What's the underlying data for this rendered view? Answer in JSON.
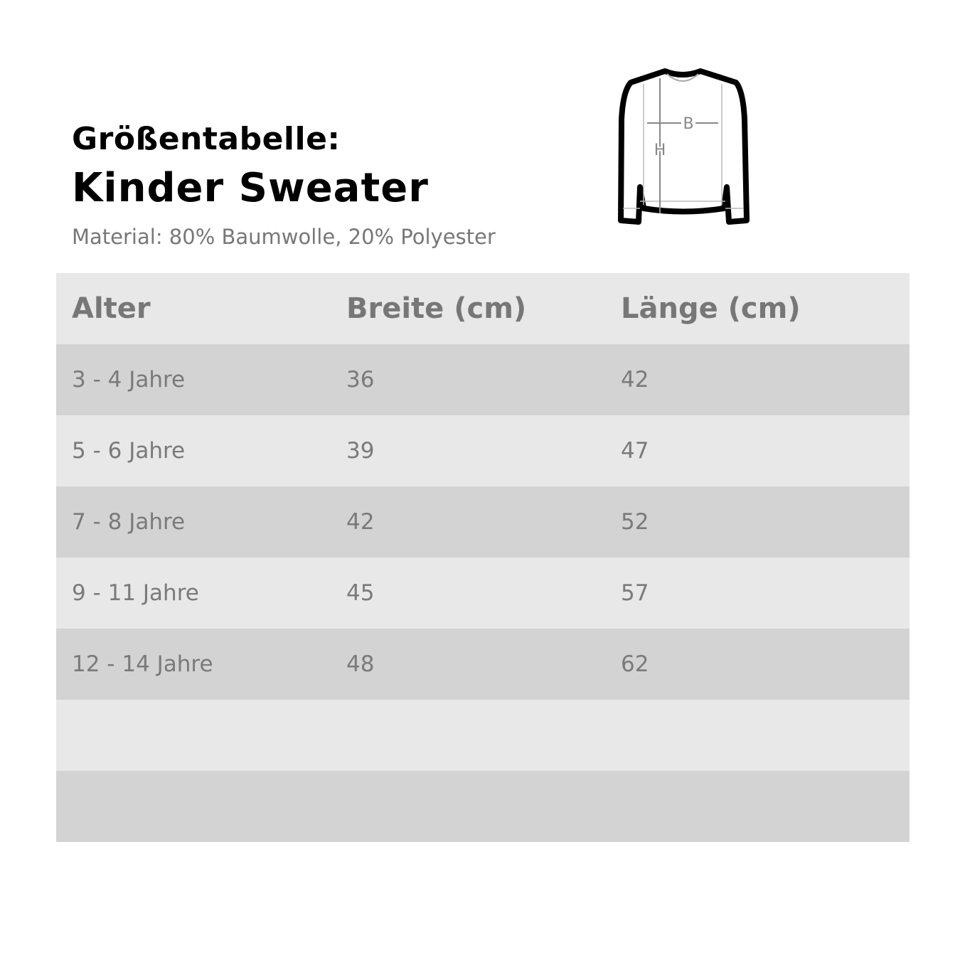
{
  "title_line1": "Größentabelle:",
  "title_line2": "Kinder Sweater",
  "material": "Material: 80% Baumwolle, 20% Polyester",
  "diagram": {
    "width_label": "B",
    "height_label": "H"
  },
  "table": {
    "headers": [
      "Alter",
      "Breite (cm)",
      "Länge (cm)"
    ],
    "rows": [
      [
        "3 - 4 Jahre",
        "36",
        "42"
      ],
      [
        "5 - 6 Jahre",
        "39",
        "47"
      ],
      [
        "7 - 8 Jahre",
        "42",
        "52"
      ],
      [
        "9 - 11 Jahre",
        "45",
        "57"
      ],
      [
        "12 - 14 Jahre",
        "48",
        "62"
      ],
      [
        "",
        "",
        ""
      ],
      [
        "",
        "",
        ""
      ]
    ]
  },
  "colors": {
    "header_bg": "#e8e8e8",
    "stripe_dark": "#d3d3d3",
    "text": "#777777"
  }
}
